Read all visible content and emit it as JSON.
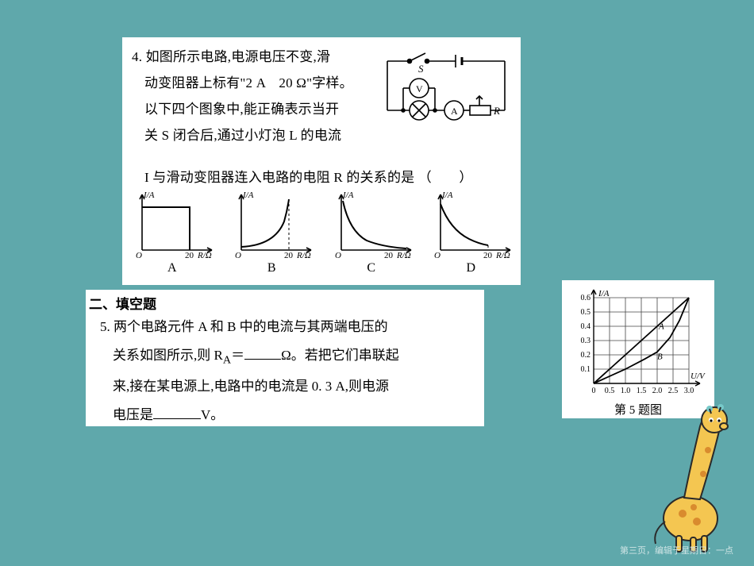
{
  "background_color": "#5fa8ab",
  "panel_bg": "#ffffff",
  "text_color": "#000000",
  "q4": {
    "num": "4.",
    "l1": "如图所示电路,电源电压不变,滑",
    "l2": "动变阻器上标有\"2 A　20 Ω\"字样。",
    "l3": "以下四个图象中,能正确表示当开",
    "l4": "关 S 闭合后,通过小灯泡 L 的电流",
    "l5": "I 与滑动变阻器连入电路的电阻 R 的关系的是 （　　）",
    "axis_y": "I/A",
    "axis_x": "R/Ω",
    "xmax": "20",
    "opts": [
      "A",
      "B",
      "C",
      "D"
    ],
    "circuit": {
      "S": "S",
      "V": "V",
      "A": "A",
      "R": "R"
    }
  },
  "section2": "二、填空题",
  "q5": {
    "num": "5.",
    "l1": "两个电路元件 A 和 B 中的电流与其两端电压的",
    "l2a": "关系如图所示,则 R",
    "sub": "A",
    "l2b": "＝",
    "l2c": "Ω。若把它们串联起",
    "l3": "来,接在某电源上,电路中的电流是 0. 3 A,则电源",
    "l4a": "电压是",
    "l4b": "V。",
    "graph": {
      "ylabel": "I/A",
      "xlabel": "U/V",
      "xticks": [
        "0",
        "0.5",
        "1.0",
        "1.5",
        "2.0",
        "2.5",
        "3.0"
      ],
      "yticks": [
        "0.1",
        "0.2",
        "0.3",
        "0.4",
        "0.5",
        "0.6"
      ],
      "A_label": "A",
      "B_label": "B",
      "series_A": [
        [
          0,
          0
        ],
        [
          0.5,
          0.1
        ],
        [
          1.0,
          0.2
        ],
        [
          1.5,
          0.3
        ],
        [
          2.0,
          0.4
        ],
        [
          2.5,
          0.5
        ],
        [
          3.0,
          0.6
        ]
      ],
      "series_B": [
        [
          0,
          0
        ],
        [
          1.0,
          0.1
        ],
        [
          1.6,
          0.17
        ],
        [
          2.0,
          0.22
        ],
        [
          2.4,
          0.32
        ],
        [
          2.7,
          0.44
        ],
        [
          3.0,
          0.6
        ]
      ],
      "grid_color": "#444444",
      "line_color": "#000000",
      "bg": "#ffffff"
    },
    "caption": "第 5 题图"
  },
  "footer": "第三页，编辑于星期日：一点"
}
